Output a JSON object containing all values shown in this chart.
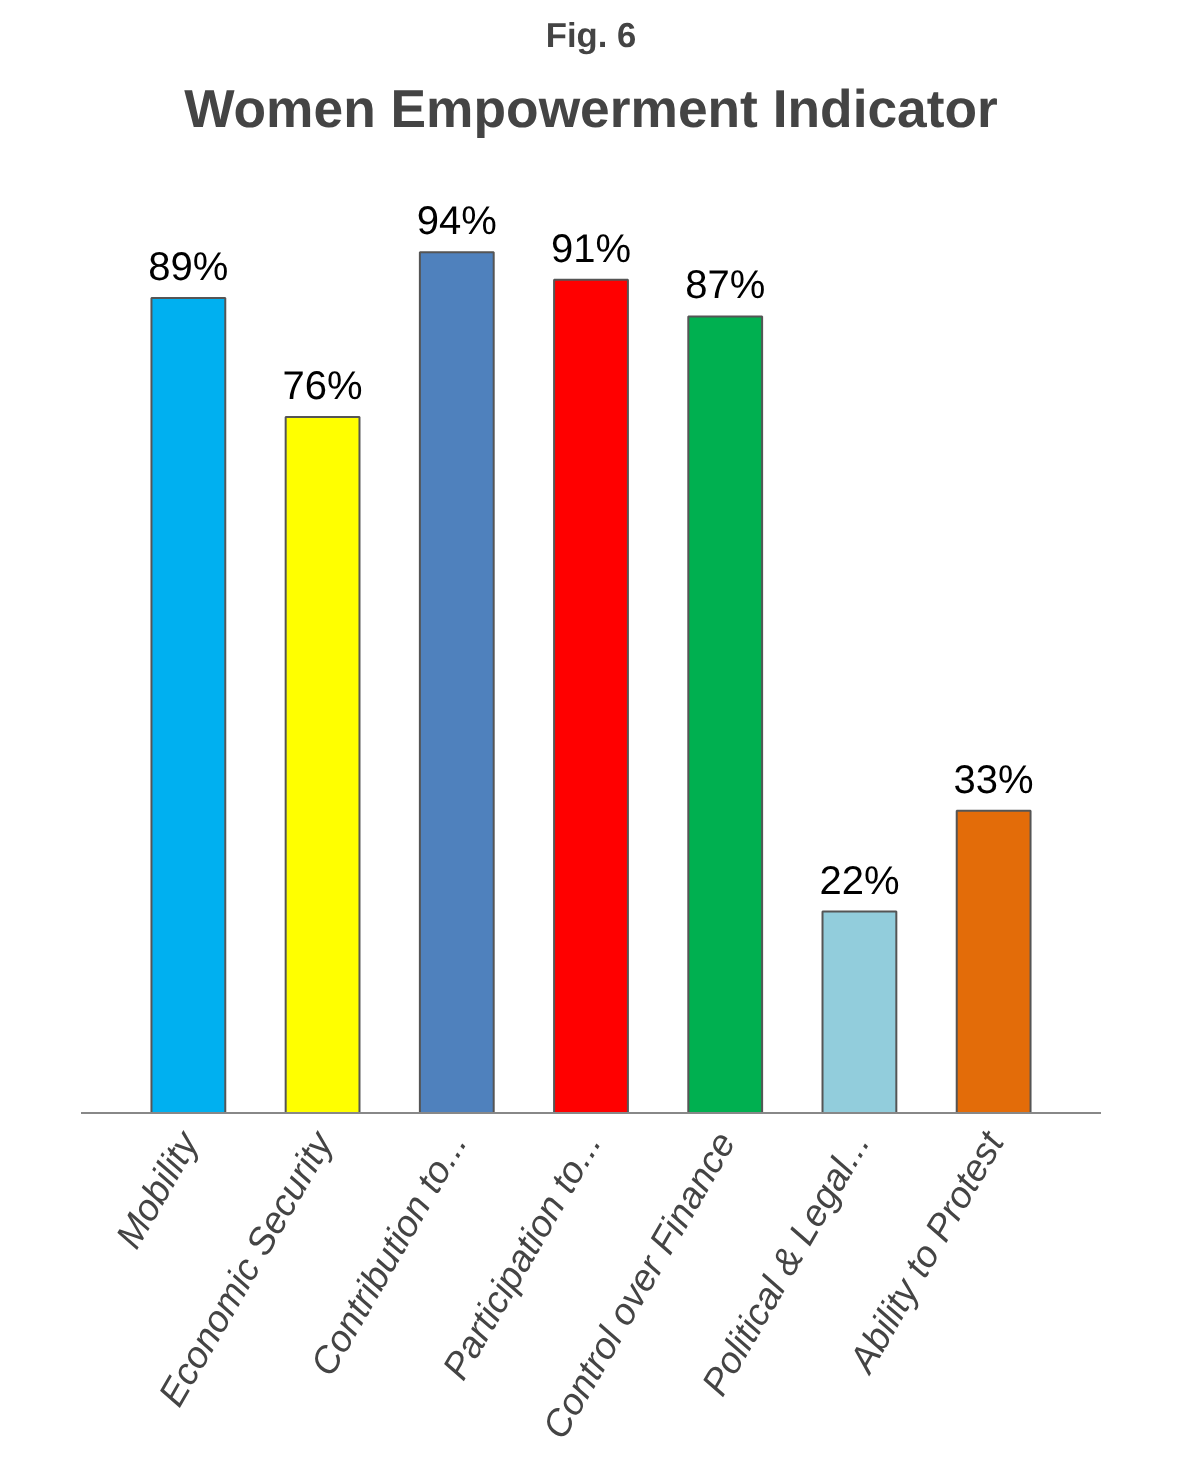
{
  "chart_data": {
    "type": "bar",
    "title": "Women Empowerment Indicator",
    "annotations": [
      "Fig. 6"
    ],
    "categories": [
      "Mobility",
      "Economic Security",
      "Contribution to...",
      "Participation to...",
      "Control over Finance",
      "Political & Legal...",
      "Ability to Protest"
    ],
    "values": [
      89,
      76,
      94,
      91,
      87,
      22,
      33
    ],
    "value_labels": [
      "89%",
      "76%",
      "94%",
      "91%",
      "87%",
      "22%",
      "33%"
    ],
    "colors": [
      "#00b0f0",
      "#ffff00",
      "#4f81bd",
      "#ff0000",
      "#00b050",
      "#92cddc",
      "#e36c09"
    ],
    "grid": false
  }
}
